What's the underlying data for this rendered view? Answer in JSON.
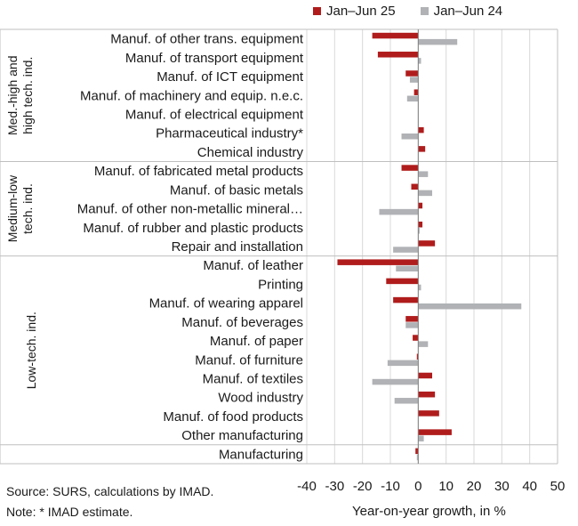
{
  "chart_data": {
    "type": "bar",
    "orientation": "horizontal",
    "categories": [
      "Manuf. of other trans. equipment",
      "Manuf. of transport equipment",
      "Manuf. of ICT equipment",
      "Manuf. of machinery and equip. n.e.c.",
      "Manuf. of electrical equipment",
      "Pharmaceutical industry*",
      "Chemical industry",
      "Manuf. of fabricated metal products",
      "Manuf. of basic metals",
      "Manuf. of other non-metallic mineral…",
      "Manuf. of rubber and plastic products",
      "Repair and installation",
      "Manuf. of leather",
      "Printing",
      "Manuf. of wearing apparel",
      "Manuf. of beverages",
      "Manuf. of paper",
      "Manuf. of furniture",
      "Manuf. of textiles",
      "Wood industry",
      "Manuf. of food products",
      "Other manufacturing",
      "Manufacturing"
    ],
    "series": [
      {
        "name": "Jan–Jun 25",
        "color": "#b01c1c",
        "values": [
          -16.5,
          -14.5,
          -4.5,
          -1.5,
          0,
          2,
          2.5,
          -6,
          -2.5,
          1.5,
          1.5,
          6,
          -29,
          -11.5,
          -9,
          -4.5,
          -2,
          -0.5,
          5,
          6,
          7.5,
          12,
          -1
        ]
      },
      {
        "name": "Jan–Jun 24",
        "color": "#b0b2b5",
        "values": [
          14,
          1,
          -3,
          -4,
          0,
          -6,
          0,
          3.5,
          5,
          -14,
          0.5,
          -9,
          -8,
          1,
          37,
          -4.5,
          3.5,
          -11,
          -16.5,
          -8.5,
          0,
          2,
          -0.5
        ]
      }
    ],
    "groups": [
      {
        "label": "Med.-high and high tech. ind.",
        "start": 0,
        "end": 6
      },
      {
        "label": "Medium-low tech. ind.",
        "start": 7,
        "end": 11
      },
      {
        "label": "Low-tech. ind.",
        "start": 12,
        "end": 21
      }
    ],
    "xlim": [
      -40,
      50
    ],
    "xticks": [
      "-40",
      "-30",
      "-20",
      "-10",
      "0",
      "10",
      "20",
      "30",
      "40",
      "50"
    ],
    "xlabel": "Year-on-year growth, in %",
    "grid": true,
    "legend": "top"
  },
  "footer": {
    "source": "Source: SURS, calculations by IMAD.",
    "note": "Note: * IMAD estimate."
  }
}
